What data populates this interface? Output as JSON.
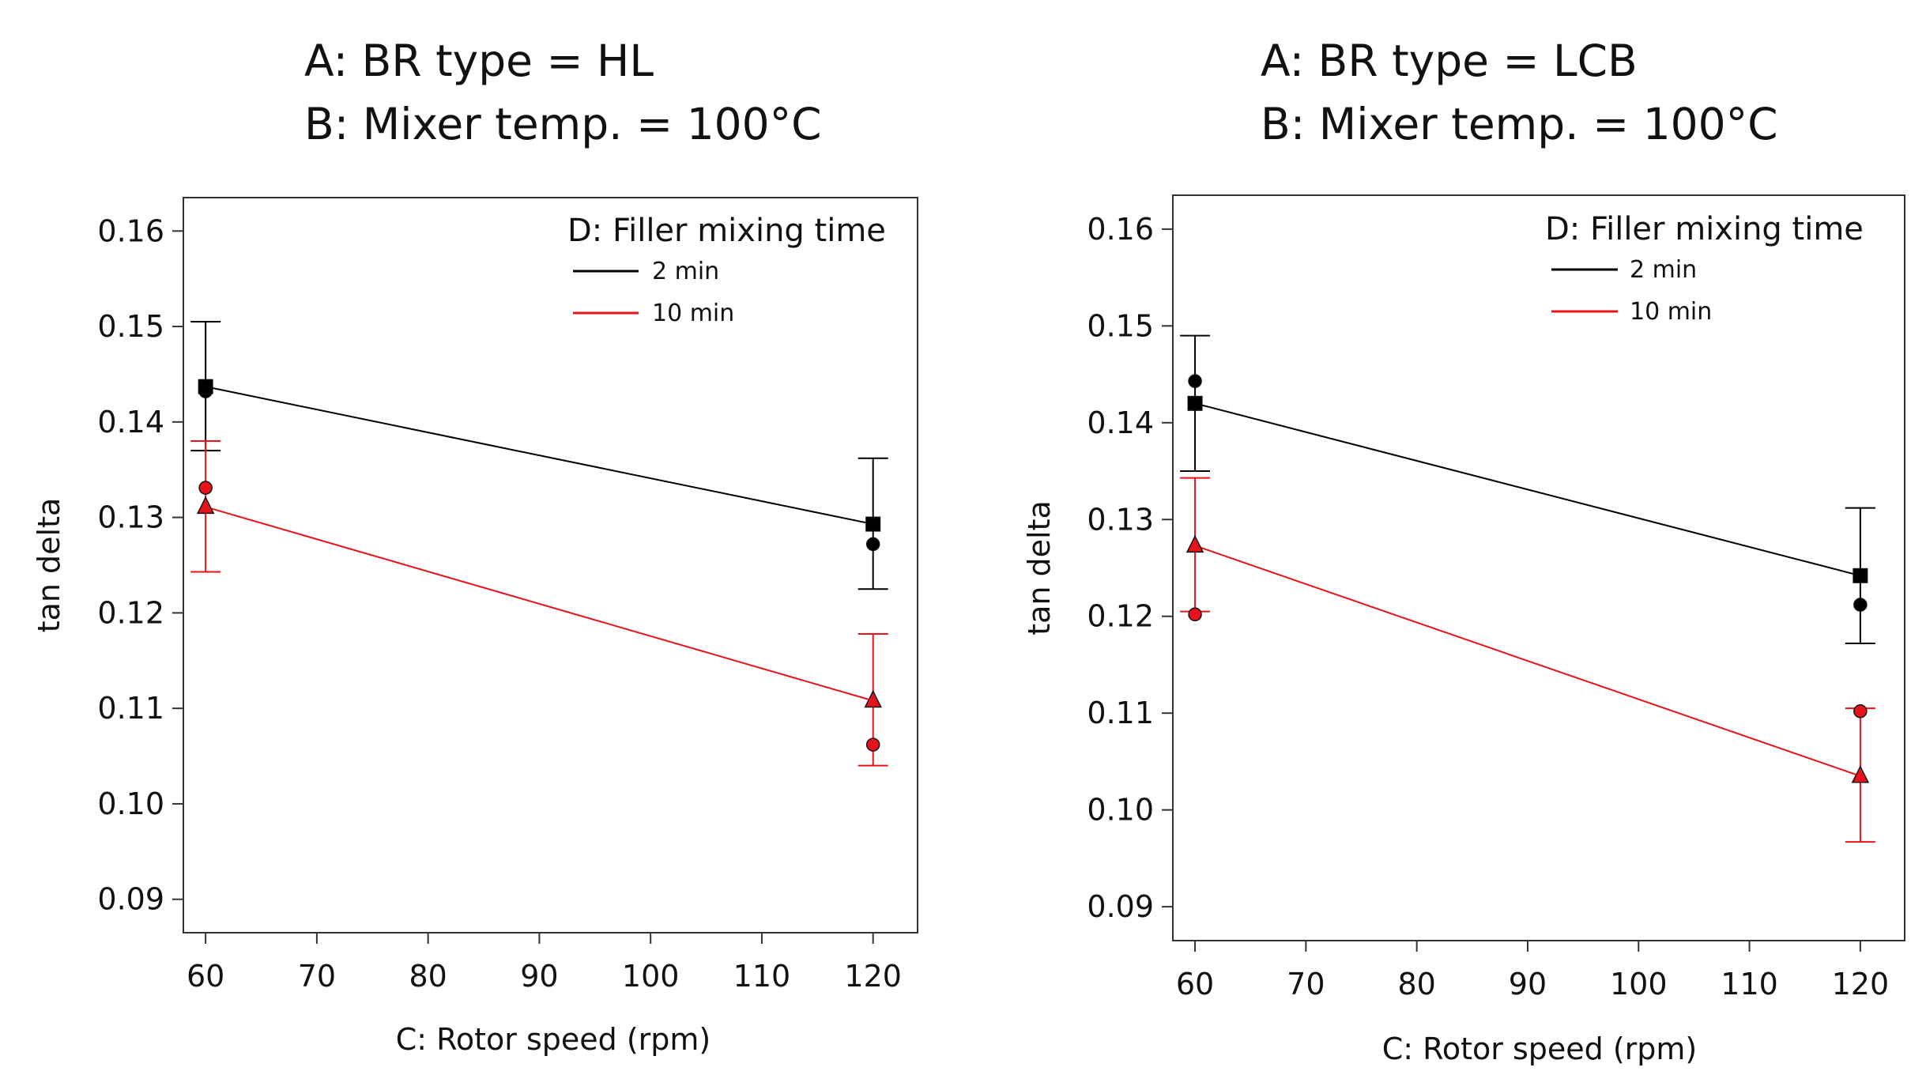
{
  "chart_data": [
    {
      "type": "line",
      "title_lines": [
        "A: BR type = HL",
        "B: Mixer temp. = 100°C"
      ],
      "xlabel": "C: Rotor speed (rpm)",
      "ylabel": "tan delta",
      "xlim": [
        58,
        124
      ],
      "ylim": [
        0.0865,
        0.1635
      ],
      "xticks": [
        60,
        70,
        80,
        90,
        100,
        110,
        120
      ],
      "yticks": [
        0.09,
        0.1,
        0.11,
        0.12,
        0.13,
        0.14,
        0.15,
        0.16
      ],
      "grid": false,
      "legend": {
        "title": "D: Filler mixing time",
        "position": "top-right",
        "entries": [
          "2 min",
          "10 min"
        ]
      },
      "series": [
        {
          "name": "2 min",
          "color": "#000000",
          "marker": "square",
          "x": [
            60,
            120
          ],
          "y": [
            0.1437,
            0.1293
          ],
          "err_low": [
            0.137,
            0.1225
          ],
          "err_high": [
            0.1505,
            0.1362
          ],
          "observed": [
            {
              "x": 60,
              "y": 0.1432,
              "marker": "circle"
            },
            {
              "x": 120,
              "y": 0.1272,
              "marker": "circle"
            }
          ]
        },
        {
          "name": "10 min",
          "color": "#e8131a",
          "marker": "triangle",
          "x": [
            60,
            120
          ],
          "y": [
            0.1311,
            0.1108
          ],
          "err_low": [
            0.1243,
            0.104
          ],
          "err_high": [
            0.138,
            0.1178
          ],
          "observed": [
            {
              "x": 60,
              "y": 0.1331,
              "marker": "circle"
            },
            {
              "x": 120,
              "y": 0.1062,
              "marker": "circle"
            }
          ]
        }
      ]
    },
    {
      "type": "line",
      "title_lines": [
        "A: BR type = LCB",
        "B: Mixer temp. = 100°C"
      ],
      "xlabel": "C: Rotor speed (rpm)",
      "ylabel": "tan delta",
      "xlim": [
        58,
        124
      ],
      "ylim": [
        0.0865,
        0.1635
      ],
      "xticks": [
        60,
        70,
        80,
        90,
        100,
        110,
        120
      ],
      "yticks": [
        0.09,
        0.1,
        0.11,
        0.12,
        0.13,
        0.14,
        0.15,
        0.16
      ],
      "grid": false,
      "legend": {
        "title": "D: Filler mixing time",
        "position": "top-right",
        "entries": [
          "2 min",
          "10 min"
        ]
      },
      "series": [
        {
          "name": "2 min",
          "color": "#000000",
          "marker": "square",
          "x": [
            60,
            120
          ],
          "y": [
            0.142,
            0.1242
          ],
          "err_low": [
            0.135,
            0.1172
          ],
          "err_high": [
            0.149,
            0.1312
          ],
          "observed": [
            {
              "x": 60,
              "y": 0.1443,
              "marker": "circle"
            },
            {
              "x": 120,
              "y": 0.1212,
              "marker": "circle"
            }
          ]
        },
        {
          "name": "10 min",
          "color": "#e8131a",
          "marker": "triangle",
          "x": [
            60,
            120
          ],
          "y": [
            0.1273,
            0.1035
          ],
          "err_low": [
            0.1205,
            0.0967
          ],
          "err_high": [
            0.1343,
            0.1105
          ],
          "observed": [
            {
              "x": 60,
              "y": 0.1202,
              "marker": "circle"
            },
            {
              "x": 120,
              "y": 0.1102,
              "marker": "circle"
            }
          ]
        }
      ]
    }
  ]
}
